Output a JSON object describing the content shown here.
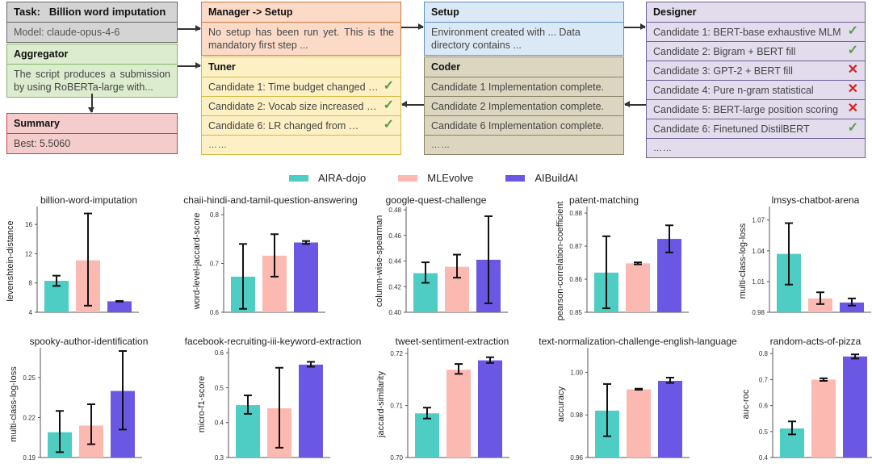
{
  "pipeline": {
    "task": {
      "label": "Task:",
      "title": "Billion word imputation",
      "model": "Model: claude-opus-4-6"
    },
    "aggregator": {
      "title": "Aggregator",
      "text": "The script produces a submission by using RoBERTa-large with..."
    },
    "summary": {
      "title": "Summary",
      "text": "Best: 5.5060"
    },
    "manager": {
      "title": "Manager -> Setup",
      "text": "No setup has been run yet. This is the mandatory first step ..."
    },
    "setup": {
      "title": "Setup",
      "text": "Environment created with ... Data directory contains ..."
    },
    "tuner": {
      "title": "Tuner",
      "items": [
        {
          "text": "Candidate 1: Time budget changed …",
          "status": "ok"
        },
        {
          "text": "Candidate 2: Vocab size increased …",
          "status": "ok"
        },
        {
          "text": "Candidate 6: LR changed from …",
          "status": "ok"
        }
      ],
      "more": "……"
    },
    "coder": {
      "title": "Coder",
      "items": [
        {
          "text": "Candidate 1 Implementation complete."
        },
        {
          "text": "Candidate 2 Implementation complete."
        },
        {
          "text": "Candidate 6 Implementation complete."
        }
      ],
      "more": "……"
    },
    "designer": {
      "title": "Designer",
      "items": [
        {
          "text": "Candidate 1: BERT-base exhaustive MLM",
          "status": "ok"
        },
        {
          "text": "Candidate 2: Bigram + BERT fill",
          "status": "ok"
        },
        {
          "text": "Candidate 3: GPT-2 + BERT fill",
          "status": "bad"
        },
        {
          "text": "Candidate 4: Pure n-gram statistical",
          "status": "bad"
        },
        {
          "text": "Candidate 5: BERT-large position scoring",
          "status": "bad"
        },
        {
          "text": "Candidate 6: Finetuned DistilBERT",
          "status": "ok"
        }
      ],
      "more": "……"
    },
    "status_icons": {
      "ok": "✓",
      "bad": "✕"
    }
  },
  "legend": [
    {
      "name": "AIRA-dojo",
      "color": "#4ecdc4"
    },
    {
      "name": "MLEvolve",
      "color": "#fbb9b2"
    },
    {
      "name": "AIBuildAI",
      "color": "#6a58e4"
    }
  ],
  "chart_data": [
    {
      "type": "bar",
      "title": "billion-word-imputation",
      "ylabel": "levenshtein-distance",
      "ylim": [
        4,
        18
      ],
      "yticks": [
        4,
        8,
        12,
        16
      ],
      "tickfmt": 0,
      "series": [
        {
          "name": "AIRA-dojo",
          "value": 8.3,
          "err": [
            7.6,
            9.0
          ]
        },
        {
          "name": "MLEvolve",
          "value": 11.1,
          "err": [
            4.9,
            17.5
          ]
        },
        {
          "name": "AIBuildAI",
          "value": 5.5,
          "err": [
            5.45,
            5.55
          ]
        }
      ]
    },
    {
      "type": "bar",
      "title": "chaii-hindi-and-tamil-question-answering",
      "ylabel": "word-level-jaccard-score",
      "ylim": [
        0.6,
        0.81
      ],
      "yticks": [
        0.6,
        0.7,
        0.8
      ],
      "tickfmt": 1,
      "series": [
        {
          "name": "AIRA-dojo",
          "value": 0.673,
          "err": [
            0.607,
            0.74
          ]
        },
        {
          "name": "MLEvolve",
          "value": 0.716,
          "err": [
            0.673,
            0.76
          ]
        },
        {
          "name": "AIBuildAI",
          "value": 0.743,
          "err": [
            0.74,
            0.746
          ]
        }
      ]
    },
    {
      "type": "bar",
      "title": "google-quest-challenge",
      "ylabel": "column-wise-spearman",
      "ylim": [
        0.4,
        0.48
      ],
      "yticks": [
        0.4,
        0.42,
        0.44,
        0.46,
        0.48
      ],
      "tickfmt": 2,
      "series": [
        {
          "name": "AIRA-dojo",
          "value": 0.4305,
          "err": [
            0.423,
            0.439
          ]
        },
        {
          "name": "MLEvolve",
          "value": 0.4355,
          "err": [
            0.427,
            0.445
          ]
        },
        {
          "name": "AIBuildAI",
          "value": 0.441,
          "err": [
            0.407,
            0.475
          ]
        }
      ]
    },
    {
      "type": "bar",
      "title": "patent-matching",
      "ylabel": "pearson-correlation-coefficient",
      "ylim": [
        0.85,
        0.881
      ],
      "yticks": [
        0.85,
        0.86,
        0.87,
        0.88
      ],
      "tickfmt": 2,
      "series": [
        {
          "name": "AIRA-dojo",
          "value": 0.862,
          "err": [
            0.8512,
            0.873
          ]
        },
        {
          "name": "MLEvolve",
          "value": 0.8648,
          "err": [
            0.8645,
            0.8651
          ]
        },
        {
          "name": "AIBuildAI",
          "value": 0.8722,
          "err": [
            0.8681,
            0.8763
          ]
        }
      ]
    },
    {
      "type": "bar",
      "title": "lmsys-chatbot-arena",
      "ylabel": "multi-class-log-loss",
      "ylim": [
        0.98,
        1.08
      ],
      "yticks": [
        0.98,
        1.01,
        1.04,
        1.07
      ],
      "tickfmt": 2,
      "series": [
        {
          "name": "AIRA-dojo",
          "value": 1.037,
          "err": [
            1.007,
            1.067
          ]
        },
        {
          "name": "MLEvolve",
          "value": 0.9935,
          "err": [
            0.988,
            0.9995
          ]
        },
        {
          "name": "AIBuildAI",
          "value": 0.9895,
          "err": [
            0.9865,
            0.9935
          ]
        }
      ]
    },
    {
      "type": "bar",
      "title": "spooky-author-identification",
      "ylabel": "multi-class-log-loss",
      "ylim": [
        0.19,
        0.27
      ],
      "yticks": [
        0.19,
        0.22,
        0.25
      ],
      "tickfmt": 2,
      "series": [
        {
          "name": "AIRA-dojo",
          "value": 0.209,
          "err": [
            0.194,
            0.225
          ]
        },
        {
          "name": "MLEvolve",
          "value": 0.214,
          "err": [
            0.2,
            0.23
          ]
        },
        {
          "name": "AIBuildAI",
          "value": 0.24,
          "err": [
            0.211,
            0.27
          ]
        }
      ]
    },
    {
      "type": "bar",
      "title": "facebook-recruiting-iii-keyword-extraction",
      "ylabel": "micro-f1-score",
      "ylim": [
        0.3,
        0.605
      ],
      "yticks": [
        0.3,
        0.4,
        0.5,
        0.6
      ],
      "tickfmt": 1,
      "series": [
        {
          "name": "AIRA-dojo",
          "value": 0.45,
          "err": [
            0.425,
            0.478
          ]
        },
        {
          "name": "MLEvolve",
          "value": 0.441,
          "err": [
            0.328,
            0.557
          ]
        },
        {
          "name": "AIBuildAI",
          "value": 0.566,
          "err": [
            0.56,
            0.574
          ]
        }
      ]
    },
    {
      "type": "bar",
      "title": "tweet-sentiment-extraction",
      "ylabel": "jaccard-similarity",
      "ylim": [
        0.7,
        0.7205
      ],
      "yticks": [
        0.7,
        0.71,
        0.72
      ],
      "tickfmt": 2,
      "series": [
        {
          "name": "AIRA-dojo",
          "value": 0.7085,
          "err": [
            0.7075,
            0.7096
          ]
        },
        {
          "name": "MLEvolve",
          "value": 0.7169,
          "err": [
            0.7161,
            0.718
          ]
        },
        {
          "name": "AIBuildAI",
          "value": 0.7187,
          "err": [
            0.7182,
            0.7193
          ]
        }
      ]
    },
    {
      "type": "bar",
      "title": "text-normalization-challenge-english-language",
      "ylabel": "accuracy",
      "ylim": [
        0.96,
        1.01
      ],
      "yticks": [
        0.96,
        0.98,
        1.0
      ],
      "tickfmt": 2,
      "series": [
        {
          "name": "AIRA-dojo",
          "value": 0.982,
          "err": [
            0.97,
            0.9945
          ]
        },
        {
          "name": "MLEvolve",
          "value": 0.992,
          "err": [
            0.9918,
            0.9923
          ]
        },
        {
          "name": "AIBuildAI",
          "value": 0.996,
          "err": [
            0.995,
            0.9975
          ]
        }
      ]
    },
    {
      "type": "bar",
      "title": "random-acts-of-pizza",
      "ylabel": "auc-roc",
      "ylim": [
        0.4,
        0.81
      ],
      "yticks": [
        0.4,
        0.5,
        0.6,
        0.7,
        0.8
      ],
      "tickfmt": 1,
      "series": [
        {
          "name": "AIRA-dojo",
          "value": 0.512,
          "err": [
            0.489,
            0.539
          ]
        },
        {
          "name": "MLEvolve",
          "value": 0.7,
          "err": [
            0.695,
            0.705
          ]
        },
        {
          "name": "AIBuildAI",
          "value": 0.789,
          "err": [
            0.781,
            0.797
          ]
        }
      ]
    }
  ]
}
